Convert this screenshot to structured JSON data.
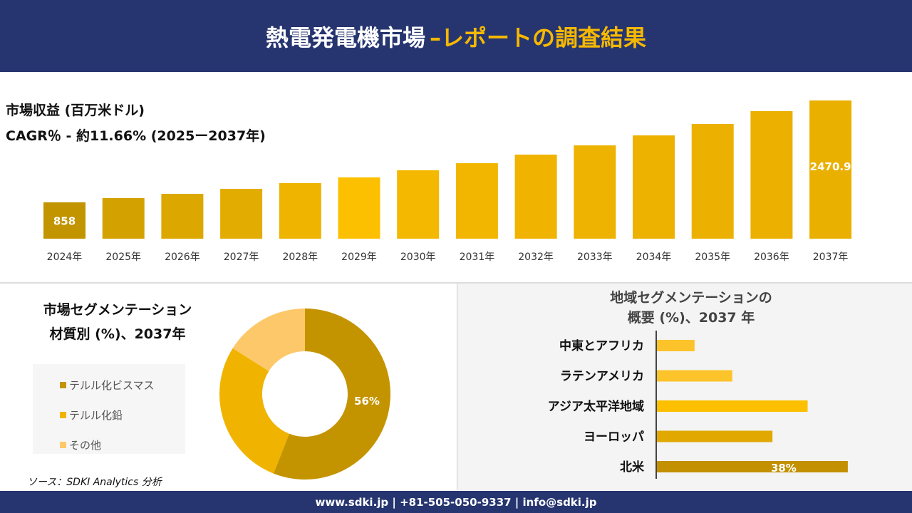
{
  "header": {
    "title": "熱電発電機市場",
    "title_accent": "–レポートの調査結果"
  },
  "revenue": {
    "label": "市場収益 (百万米ドル)",
    "cagr": "CAGR％ - 約11.66% (2025ー2037年)"
  },
  "chart_data": [
    {
      "type": "bar",
      "categories": [
        "2024年",
        "2025年",
        "2026年",
        "2027年",
        "2028年",
        "2029年",
        "2030年",
        "2031年",
        "2032年",
        "2033年",
        "2034年",
        "2035年",
        "2036年",
        "2037年"
      ],
      "values": [
        858,
        926,
        993,
        1072,
        1163,
        1253,
        1366,
        1478,
        1614,
        1760,
        1918,
        2099,
        2302,
        2470.9
      ],
      "data_labels": {
        "0": "858",
        "13": "2470.9"
      },
      "colors": [
        "#c29400",
        "#d4a200",
        "#dca800",
        "#e3ac00",
        "#eeb400",
        "#fcc000",
        "#f5b800",
        "#f2b600",
        "#f0b400",
        "#eeb300",
        "#edb200",
        "#ecb100",
        "#ebb000",
        "#eab000"
      ]
    },
    {
      "type": "pie",
      "title": "市場セグメンテーション 材質別 (%)、2037年",
      "title_lines": [
        "市場セグメンテーション",
        "材質別 (%)、2037年"
      ],
      "categories": [
        "テルル化ビスマス",
        "テルル化鉛",
        "その他"
      ],
      "values": [
        56,
        28,
        16
      ],
      "data_labels": [
        "56%",
        "",
        ""
      ],
      "colors": [
        "#c49400",
        "#f0b400",
        "#fdc86a"
      ]
    },
    {
      "type": "bar",
      "orientation": "horizontal",
      "title_lines": [
        "地域セグメンテーションの",
        "概要 (%)、2037 年"
      ],
      "categories": [
        "中東とアフリカ",
        "ラテンアメリカ",
        "アジア太平洋地域",
        "ヨーロッパ",
        "北米"
      ],
      "values": [
        7.5,
        15,
        30,
        23,
        38
      ],
      "data_labels": [
        "",
        "",
        "",
        "",
        "38%"
      ],
      "colors": [
        "#fcc42a",
        "#fcc42a",
        "#fcc000",
        "#e0a800",
        "#c29000"
      ]
    }
  ],
  "source": "ソース：SDKI Analytics 分析",
  "footer": "www.sdki.jp | +81-505-050-9337 | info@sdki.jp"
}
